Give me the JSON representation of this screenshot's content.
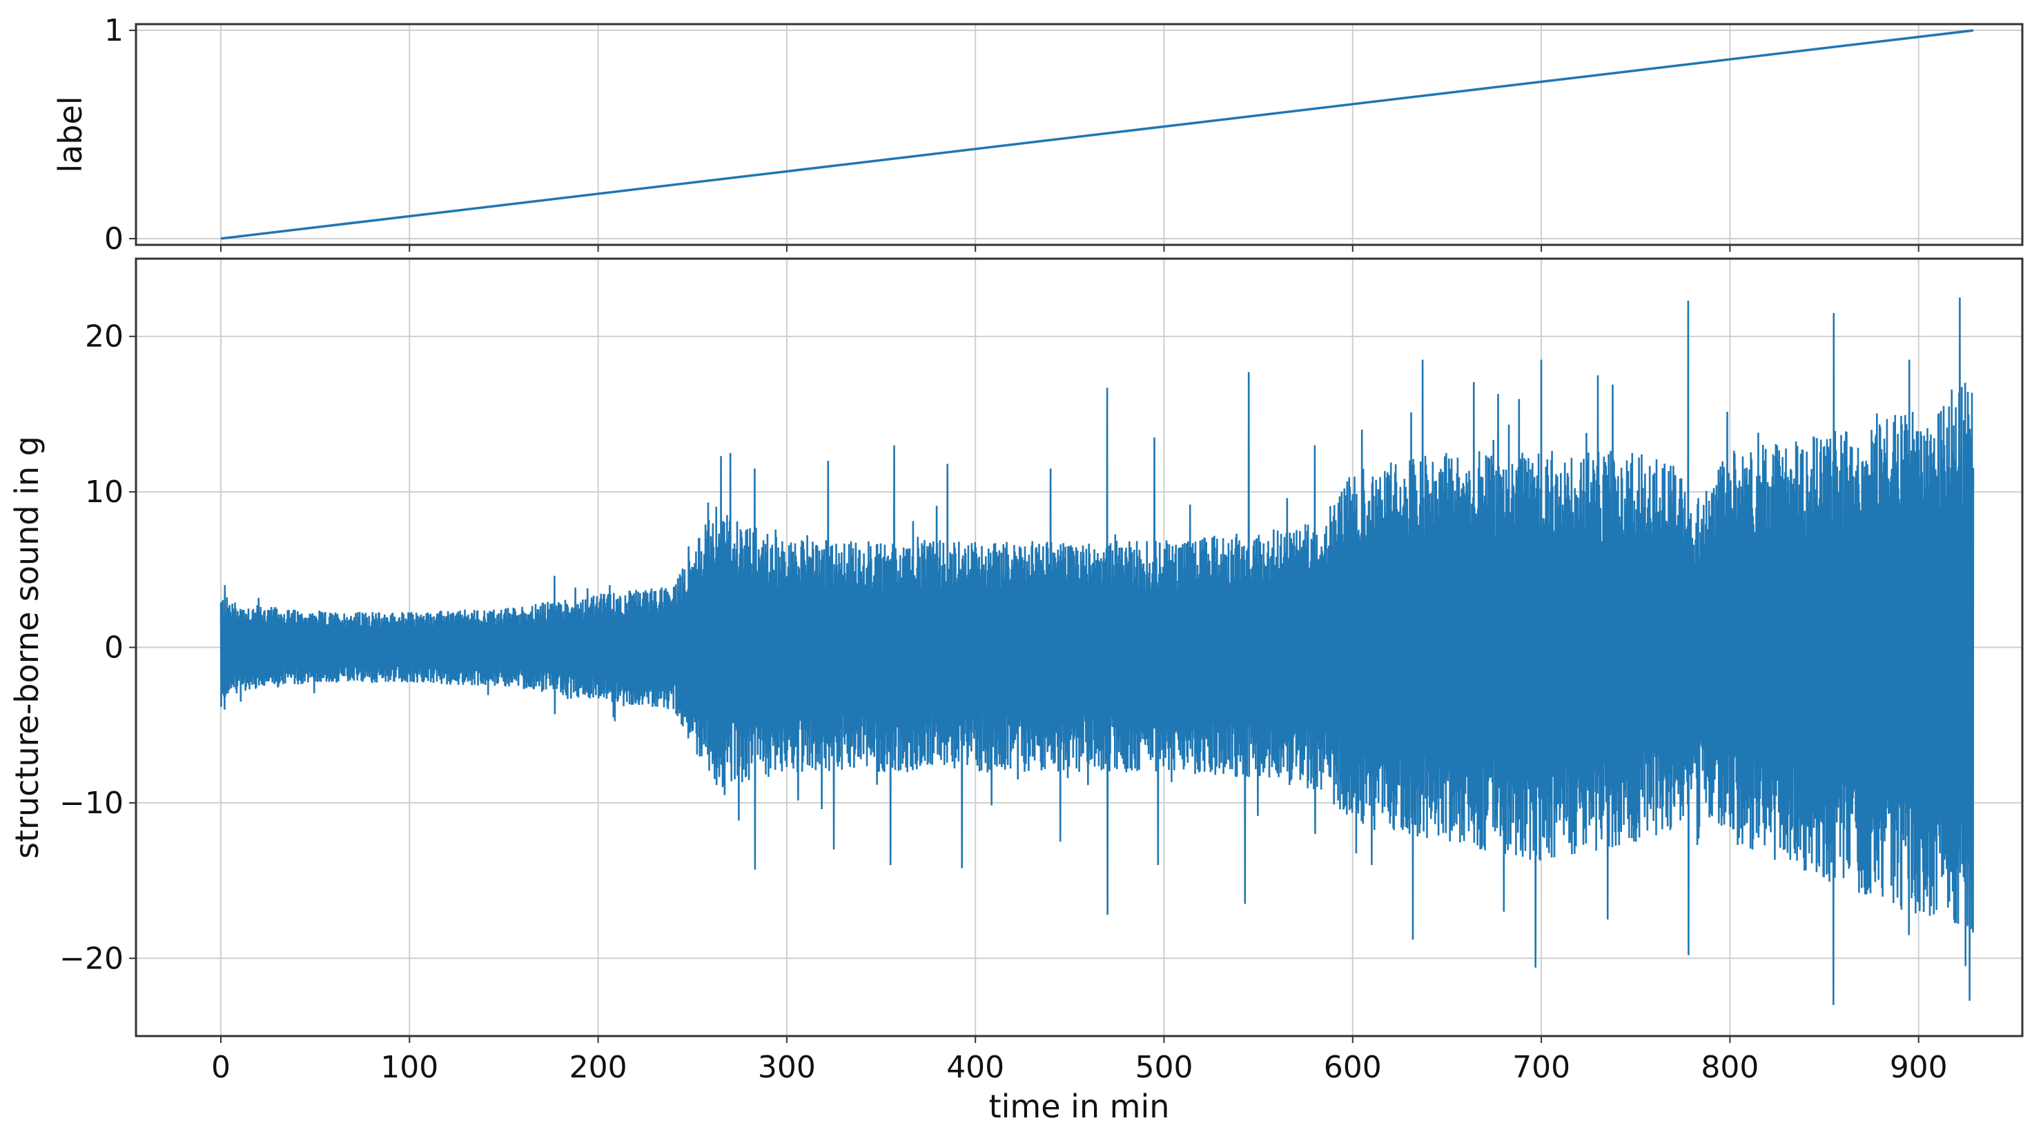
{
  "chart_data": [
    {
      "type": "line",
      "title": "",
      "xlabel": "",
      "ylabel": "label",
      "xlim": [
        -45,
        955
      ],
      "ylim": [
        -0.03,
        1.03
      ],
      "xticks": [
        0,
        100,
        200,
        300,
        400,
        500,
        600,
        700,
        800,
        900
      ],
      "yticks": [
        0,
        1
      ],
      "grid": true,
      "legend": "none",
      "color": "#1f77b4",
      "series": [
        {
          "x": [
            0,
            929
          ],
          "y": [
            0,
            1
          ]
        }
      ]
    },
    {
      "type": "line",
      "title": "",
      "xlabel": "time in min",
      "ylabel": "structure-borne sound in g",
      "xlim": [
        -45,
        955
      ],
      "ylim": [
        -25,
        25
      ],
      "xticks": [
        0,
        100,
        200,
        300,
        400,
        500,
        600,
        700,
        800,
        900
      ],
      "yticks": [
        -20,
        -10,
        0,
        10,
        20
      ],
      "grid": true,
      "legend": "none",
      "color": "#1f77b4",
      "envelope": {
        "x": [
          0,
          10,
          50,
          100,
          150,
          170,
          200,
          240,
          262,
          300,
          350,
          400,
          450,
          500,
          550,
          580,
          600,
          650,
          700,
          750,
          775,
          780,
          800,
          850,
          900,
          929
        ],
        "upper": [
          3,
          2.5,
          2,
          2,
          2.2,
          2.5,
          3,
          3.5,
          8,
          6,
          6,
          6,
          6,
          6,
          6.5,
          7,
          10,
          11,
          11,
          11,
          10,
          8,
          11,
          12,
          14,
          15
        ],
        "lower": [
          -3,
          -2.5,
          -2,
          -2,
          -2.2,
          -2.5,
          -3,
          -3.5,
          -8,
          -7,
          -7,
          -7,
          -7,
          -7,
          -7.5,
          -8,
          -10,
          -11,
          -12,
          -11,
          -10,
          -8,
          -11,
          -13,
          -15,
          -16
        ]
      },
      "peaks": [
        {
          "x": 2,
          "y": 4
        },
        {
          "x": 2,
          "y": -4
        },
        {
          "x": 177,
          "y": 4.6
        },
        {
          "x": 177,
          "y": -4.3
        },
        {
          "x": 206,
          "y": 4
        },
        {
          "x": 208,
          "y": -4.5
        },
        {
          "x": 248,
          "y": 6.5
        },
        {
          "x": 255,
          "y": -7
        },
        {
          "x": 265,
          "y": 12.3
        },
        {
          "x": 270,
          "y": 12.5
        },
        {
          "x": 267,
          "y": -9.5
        },
        {
          "x": 283,
          "y": 11.5
        },
        {
          "x": 283,
          "y": -14.3
        },
        {
          "x": 322,
          "y": 12
        },
        {
          "x": 325,
          "y": -13
        },
        {
          "x": 357,
          "y": 13
        },
        {
          "x": 355,
          "y": -14
        },
        {
          "x": 385,
          "y": 11.8
        },
        {
          "x": 393,
          "y": -14.2
        },
        {
          "x": 440,
          "y": 11.5
        },
        {
          "x": 445,
          "y": -12.5
        },
        {
          "x": 470,
          "y": 16.7
        },
        {
          "x": 470,
          "y": -17.2
        },
        {
          "x": 495,
          "y": 13.5
        },
        {
          "x": 497,
          "y": -14
        },
        {
          "x": 545,
          "y": 17.7
        },
        {
          "x": 543,
          "y": -16.5
        },
        {
          "x": 580,
          "y": 13
        },
        {
          "x": 580,
          "y": -12
        },
        {
          "x": 605,
          "y": 14
        },
        {
          "x": 610,
          "y": -14
        },
        {
          "x": 637,
          "y": 18.5
        },
        {
          "x": 632,
          "y": -18.8
        },
        {
          "x": 677,
          "y": 16.3
        },
        {
          "x": 680,
          "y": -17
        },
        {
          "x": 700,
          "y": 18.5
        },
        {
          "x": 697,
          "y": -20.6
        },
        {
          "x": 730,
          "y": 17.5
        },
        {
          "x": 735,
          "y": -17.5
        },
        {
          "x": 778,
          "y": 22.3
        },
        {
          "x": 778,
          "y": -19.8
        },
        {
          "x": 815,
          "y": 13.8
        },
        {
          "x": 812,
          "y": -13
        },
        {
          "x": 855,
          "y": 21.5
        },
        {
          "x": 855,
          "y": -23
        },
        {
          "x": 895,
          "y": 18.5
        },
        {
          "x": 895,
          "y": -18.5
        },
        {
          "x": 922,
          "y": 22.5
        },
        {
          "x": 925,
          "y": -20.5
        }
      ]
    }
  ]
}
